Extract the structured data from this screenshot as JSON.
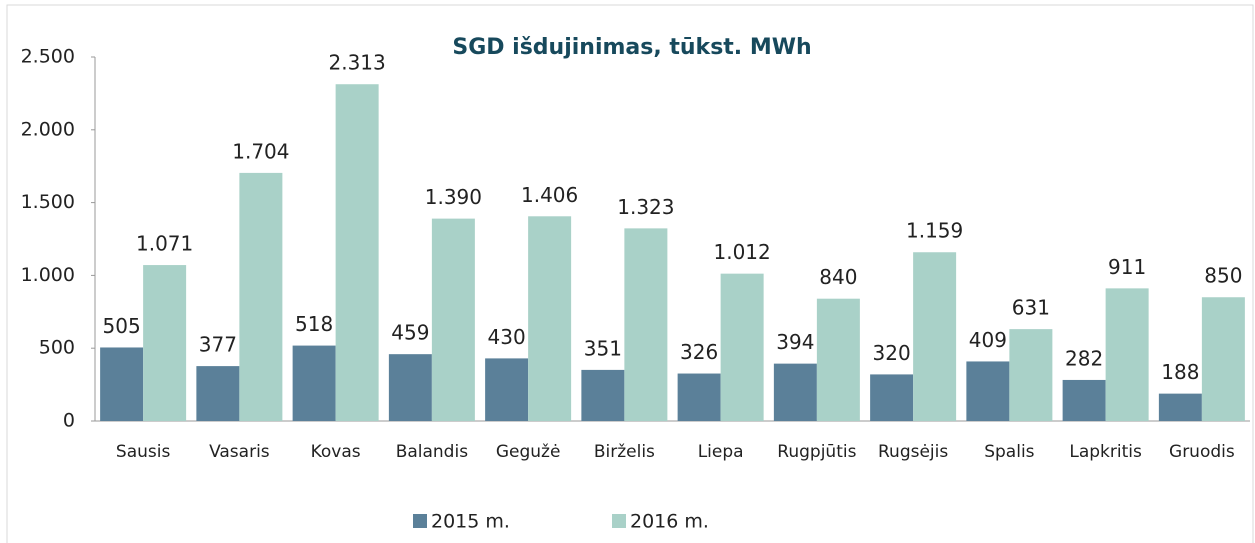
{
  "chart_data": {
    "type": "bar",
    "title": "SGD išdujinimas, tūkst. MWh",
    "categories": [
      "Sausis",
      "Vasaris",
      "Kovas",
      "Balandis",
      "Gegužė",
      "Birželis",
      "Liepa",
      "Rugpjūtis",
      "Rugsėjis",
      "Spalis",
      "Lapkritis",
      "Gruodis"
    ],
    "series": [
      {
        "name": "2015 m.",
        "color": "#5b8099",
        "values": [
          505,
          377,
          518,
          459,
          430,
          351,
          326,
          394,
          320,
          409,
          282,
          188
        ],
        "value_labels": [
          "505",
          "377",
          "518",
          "459",
          "430",
          "351",
          "326",
          "394",
          "320",
          "409",
          "282",
          "188"
        ]
      },
      {
        "name": "2016 m.",
        "color": "#a9d1c8",
        "values": [
          1071,
          1704,
          2313,
          1390,
          1406,
          1323,
          1012,
          840,
          1159,
          631,
          911,
          850
        ],
        "value_labels": [
          "1.071",
          "1.704",
          "2.313",
          "1.390",
          "1.406",
          "1.323",
          "1.012",
          "840",
          "1.159",
          "631",
          "911",
          "850"
        ]
      }
    ],
    "ylim": [
      0,
      2500
    ],
    "yticks": [
      0,
      500,
      {
        "value": 1000,
        "label": "1.000"
      },
      {
        "value": 1500,
        "label": "1.500"
      },
      {
        "value": 2000,
        "label": "2.000"
      },
      {
        "value": 2500,
        "label": "2.500"
      }
    ],
    "legend": "bottom"
  }
}
